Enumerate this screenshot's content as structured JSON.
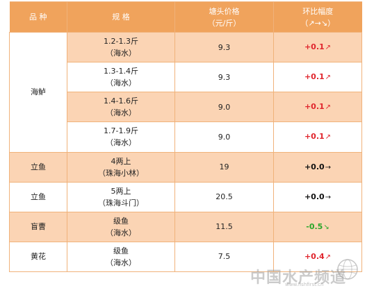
{
  "header": {
    "col_product": "品  种",
    "col_spec": "规  格",
    "col_price_line1": "塘头价格",
    "col_price_line2": "（元/斤）",
    "col_change_line1": "环比幅度",
    "col_change_line2": "（↗→↘）"
  },
  "rows": [
    {
      "product": "海鲈",
      "spec1": "1.2-1.3斤",
      "spec2": "（海水）",
      "price": "9.3",
      "change": "+0.1",
      "arrow": "↗",
      "trend": "up"
    },
    {
      "product": "",
      "spec1": "1.3-1.4斤",
      "spec2": "（海水）",
      "price": "9.3",
      "change": "+0.1",
      "arrow": "↗",
      "trend": "up"
    },
    {
      "product": "",
      "spec1": "1.4-1.6斤",
      "spec2": "（海水）",
      "price": "9.0",
      "change": "+0.1",
      "arrow": "↗",
      "trend": "up"
    },
    {
      "product": "",
      "spec1": "1.7-1.9斤",
      "spec2": "（海水）",
      "price": "9.0",
      "change": "+0.1",
      "arrow": "↗",
      "trend": "up"
    },
    {
      "product": "立鱼",
      "spec1": "4两上",
      "spec2": "（珠海小林）",
      "price": "19",
      "change": "+0.0",
      "arrow": "→",
      "trend": "flat"
    },
    {
      "product": "立鱼",
      "spec1": "5两上",
      "spec2": "（珠海斗门）",
      "price": "20.5",
      "change": "+0.0",
      "arrow": "→",
      "trend": "flat"
    },
    {
      "product": "盲曹",
      "spec1": "级鱼",
      "spec2": "（海水）",
      "price": "11.5",
      "change": "-0.5",
      "arrow": "↘",
      "trend": "down"
    },
    {
      "product": "黄花",
      "spec1": "级鱼",
      "spec2": "（海水）",
      "price": "7.5",
      "change": "+0.4",
      "arrow": "↗",
      "trend": "up"
    }
  ],
  "watermark": {
    "text": "中国水产频道",
    "url": "www.fishfirst.cn"
  },
  "colors": {
    "header_bg": "#f0a35c",
    "shade_bg": "#fbd4b4",
    "border": "#f0b27a",
    "up": "#e0252d",
    "flat": "#111111",
    "down": "#2aa62a"
  }
}
